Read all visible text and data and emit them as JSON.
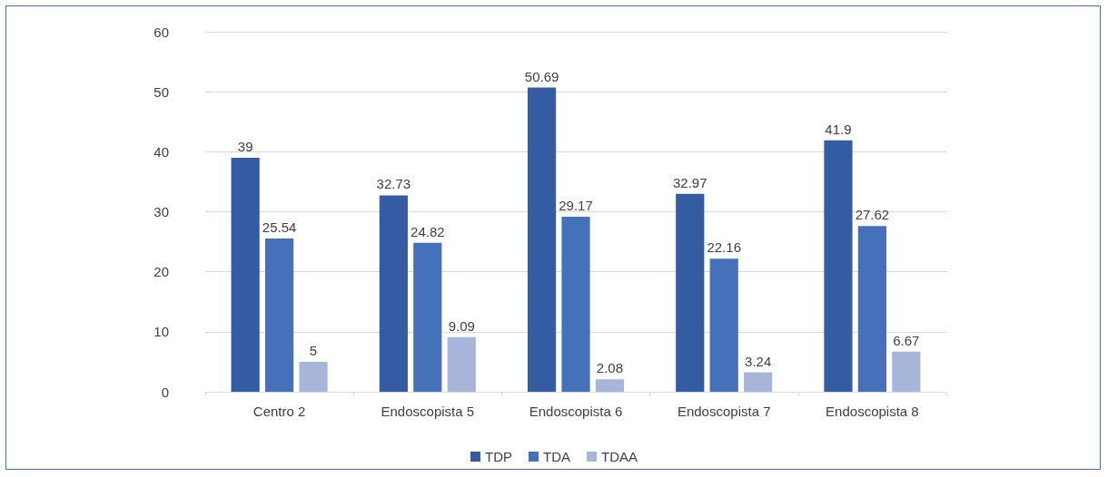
{
  "chart_data": {
    "type": "bar",
    "categories": [
      "Centro 2",
      "Endoscopista 5",
      "Endoscopista 6",
      "Endoscopista 7",
      "Endoscopista 8"
    ],
    "series": [
      {
        "name": "TDP",
        "color": "#335ca3",
        "values": [
          39,
          32.73,
          50.69,
          32.97,
          41.9
        ]
      },
      {
        "name": "TDA",
        "color": "#4571bb",
        "values": [
          25.54,
          24.82,
          29.17,
          22.16,
          27.62
        ]
      },
      {
        "name": "TDAA",
        "color": "#a8b5da",
        "values": [
          5,
          9.09,
          2.08,
          3.24,
          6.67
        ]
      }
    ],
    "ylim": [
      0,
      60
    ],
    "yticks": [
      0,
      10,
      20,
      30,
      40,
      50,
      60
    ],
    "grid": "y",
    "legend": "bottom",
    "data_labels": true
  }
}
